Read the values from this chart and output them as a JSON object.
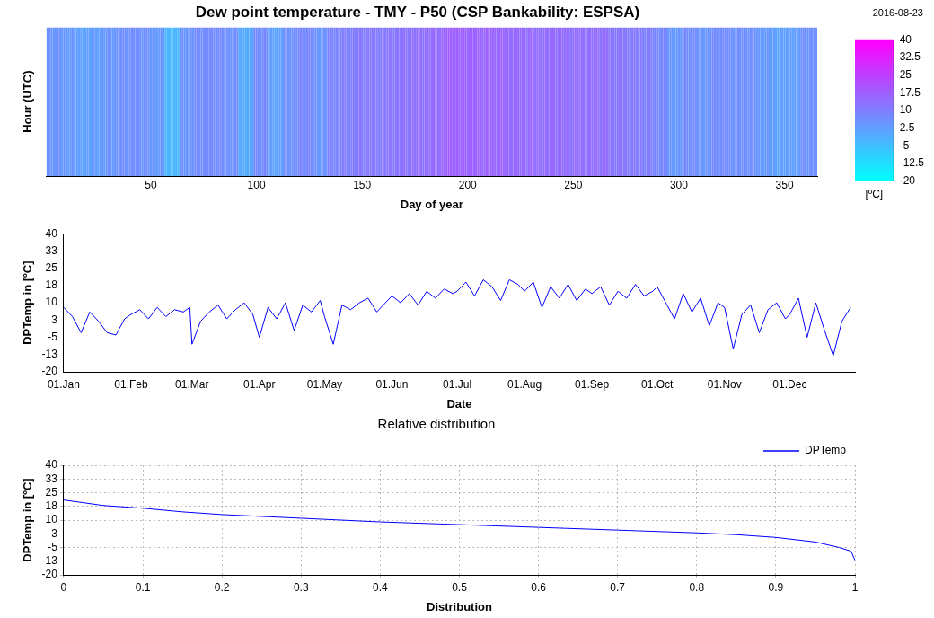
{
  "chart_data": [
    {
      "type": "heatmap",
      "title": "Dew point temperature - TMY - P50 (CSP Bankability: ESPSA)",
      "xlabel": "Day of year",
      "ylabel": "Hour (UTC)",
      "clabel": "[ºC]",
      "annotations": [
        "2016-08-23"
      ],
      "tick_labels": "x",
      "categories": [
        null,
        null,
        null,
        null,
        null,
        null,
        null,
        null,
        null,
        null,
        null,
        null,
        null,
        null,
        null,
        null,
        null,
        null,
        null,
        null,
        null,
        null,
        null,
        null,
        null,
        null,
        null,
        null,
        null,
        null,
        null,
        null,
        null,
        null,
        null,
        null,
        null,
        null,
        null,
        null,
        null,
        null,
        null,
        null,
        null,
        null,
        null,
        null,
        null,
        "50",
        null,
        null,
        null,
        null,
        null,
        null,
        null,
        null,
        null,
        null,
        null,
        null,
        null,
        null,
        null,
        null,
        null,
        null,
        null,
        null,
        null,
        null,
        null,
        null,
        null,
        null,
        null,
        null,
        null,
        null,
        null,
        null,
        null,
        null,
        null,
        null,
        null,
        null,
        null,
        null,
        null,
        null,
        null,
        null,
        null,
        null,
        null,
        null,
        null,
        "100",
        null,
        null,
        null,
        null,
        null,
        null,
        null,
        null,
        null,
        null,
        null,
        null,
        null,
        null,
        null,
        null,
        null,
        null,
        null,
        null,
        null,
        null,
        null,
        null,
        null,
        null,
        null,
        null,
        null,
        null,
        null,
        null,
        null,
        null,
        null,
        null,
        null,
        null,
        null,
        null,
        null,
        null,
        null,
        null,
        null,
        null,
        null,
        null,
        null,
        "150",
        null,
        null,
        null,
        null,
        null,
        null,
        null,
        null,
        null,
        null,
        null,
        null,
        null,
        null,
        null,
        null,
        null,
        null,
        null,
        null,
        null,
        null,
        null,
        null,
        null,
        null,
        null,
        null,
        null,
        null,
        null,
        null,
        null,
        null,
        null,
        null,
        null,
        null,
        null,
        null,
        null,
        null,
        null,
        null,
        null,
        null,
        null,
        null,
        null,
        "200",
        null,
        null,
        null,
        null,
        null,
        null,
        null,
        null,
        null,
        null,
        null,
        null,
        null,
        null,
        null,
        null,
        null,
        null,
        null,
        null,
        null,
        null,
        null,
        null,
        null,
        null,
        null,
        null,
        null,
        null,
        null,
        null,
        null,
        null,
        null,
        null,
        null,
        null,
        null,
        null,
        null,
        null,
        null,
        null,
        null,
        null,
        null,
        null,
        null,
        "250",
        null,
        null,
        null,
        null,
        null,
        null,
        null,
        null,
        null,
        null,
        null,
        null,
        null,
        null,
        null,
        null,
        null,
        null,
        null,
        null,
        null,
        null,
        null,
        null,
        null,
        null,
        null,
        null,
        null,
        null,
        null,
        null,
        null,
        null,
        null,
        null,
        null,
        null,
        null,
        null,
        null,
        null,
        null,
        null,
        null,
        null,
        null,
        null,
        null,
        "300",
        null,
        null,
        null,
        null,
        null,
        null,
        null,
        null,
        null,
        null,
        null,
        null,
        null,
        null,
        null,
        null,
        null,
        null,
        null,
        null,
        null,
        null,
        null,
        null,
        null,
        null,
        null,
        null,
        null,
        null,
        null,
        null,
        null,
        null,
        null,
        null,
        null,
        null,
        null,
        null,
        null,
        null,
        null,
        null,
        null,
        null,
        null,
        null,
        null,
        "350",
        null,
        null,
        null,
        null,
        null,
        null,
        null,
        null,
        null,
        null,
        null,
        null,
        null,
        null,
        null
      ],
      "y_categories": [
        null
      ],
      "cells": [
        [
          5,
          6,
          5,
          4,
          5,
          6,
          5,
          4,
          5,
          4,
          3,
          4,
          5,
          4,
          2,
          3,
          2,
          1,
          2,
          3,
          2,
          3,
          4,
          3,
          2,
          3,
          4,
          3,
          5,
          6,
          5,
          4,
          5,
          6,
          5,
          6,
          7,
          6,
          5,
          6,
          7,
          6,
          6,
          7,
          6,
          5,
          6,
          7,
          6,
          4,
          5,
          4,
          3,
          4,
          5,
          4,
          -3,
          -2,
          -3,
          -4,
          -3,
          -2,
          -3,
          5,
          6,
          5,
          4,
          5,
          6,
          5,
          7,
          8,
          7,
          6,
          7,
          8,
          7,
          7,
          8,
          7,
          6,
          7,
          8,
          7,
          6,
          7,
          6,
          5,
          6,
          7,
          6,
          0,
          1,
          0,
          -1,
          0,
          1,
          0,
          7,
          8,
          7,
          6,
          7,
          8,
          7,
          2,
          3,
          2,
          1,
          2,
          3,
          2,
          6,
          7,
          6,
          5,
          6,
          7,
          6,
          8,
          9,
          8,
          7,
          8,
          9,
          8,
          5,
          6,
          5,
          4,
          5,
          6,
          5,
          9,
          10,
          9,
          8,
          9,
          10,
          9,
          10,
          11,
          10,
          9,
          10,
          11,
          10,
          11,
          12,
          11,
          10,
          11,
          12,
          11,
          11,
          12,
          11,
          10,
          11,
          12,
          11,
          12,
          13,
          12,
          11,
          12,
          13,
          12,
          13,
          14,
          13,
          12,
          13,
          14,
          13,
          14,
          15,
          14,
          13,
          14,
          15,
          14,
          15,
          16,
          15,
          14,
          15,
          16,
          15,
          17,
          18,
          17,
          16,
          17,
          18,
          17,
          17,
          18,
          17,
          16,
          17,
          18,
          17,
          16,
          17,
          16,
          15,
          16,
          17,
          16,
          16,
          17,
          16,
          15,
          16,
          17,
          16,
          15,
          16,
          15,
          14,
          15,
          16,
          15,
          15,
          16,
          15,
          14,
          15,
          16,
          15,
          14,
          15,
          14,
          13,
          14,
          15,
          14,
          15,
          16,
          15,
          14,
          15,
          16,
          15,
          14,
          15,
          14,
          13,
          14,
          15,
          14,
          14,
          15,
          14,
          13,
          14,
          15,
          14,
          14,
          15,
          14,
          13,
          14,
          15,
          14,
          12,
          13,
          12,
          11,
          12,
          13,
          12,
          11,
          12,
          11,
          10,
          11,
          12,
          11,
          10,
          11,
          10,
          9,
          10,
          11,
          10,
          8,
          9,
          8,
          7,
          8,
          9,
          8,
          4,
          5,
          4,
          3,
          4,
          5,
          4,
          7,
          8,
          7,
          6,
          7,
          8,
          7,
          5,
          6,
          5,
          4,
          5,
          6,
          5,
          7,
          8,
          7,
          6,
          7,
          8,
          7,
          6,
          7,
          6,
          5,
          6,
          7,
          6,
          6,
          7,
          6,
          5,
          6,
          7,
          6,
          4,
          5,
          4,
          3,
          4,
          5,
          4,
          2,
          3,
          2,
          1,
          2,
          3,
          2,
          3,
          4,
          3,
          2,
          3,
          4,
          3,
          6,
          7,
          6,
          5,
          6,
          7,
          6,
          6
        ]
      ],
      "clim": [
        -20,
        40
      ],
      "cticks": [
        -20,
        -12.5,
        -5,
        2.5,
        10,
        17.5,
        25,
        32.5,
        40
      ]
    },
    {
      "type": "line",
      "xlabel": "Date",
      "ylabel": "DPTemp in [ºC]",
      "legend": false,
      "grid": false,
      "x": [
        "--01-01",
        "--01-05",
        "--01-09",
        "--01-13",
        "--01-17",
        "--01-21",
        "--01-25",
        "--01-29",
        "--02-01",
        "--02-05",
        "--02-09",
        "--02-13",
        "--02-17",
        "--02-21",
        "--02-25",
        "--02-28",
        "--03-01",
        "--03-05",
        "--03-09",
        "--03-13",
        "--03-17",
        "--03-21",
        "--03-25",
        "--03-29",
        "--04-01",
        "--04-05",
        "--04-09",
        "--04-13",
        "--04-17",
        "--04-21",
        "--04-25",
        "--04-29",
        "--05-01",
        "--05-05",
        "--05-09",
        "--05-13",
        "--05-17",
        "--05-21",
        "--05-25",
        "--05-29",
        "--06-01",
        "--06-05",
        "--06-09",
        "--06-13",
        "--06-17",
        "--06-21",
        "--06-25",
        "--06-29",
        "--07-01",
        "--07-05",
        "--07-09",
        "--07-13",
        "--07-17",
        "--07-21",
        "--07-25",
        "--07-29",
        "--08-01",
        "--08-05",
        "--08-09",
        "--08-13",
        "--08-17",
        "--08-21",
        "--08-25",
        "--08-29",
        "--09-01",
        "--09-05",
        "--09-09",
        "--09-13",
        "--09-17",
        "--09-21",
        "--09-25",
        "--09-29",
        "--10-01",
        "--10-05",
        "--10-09",
        "--10-13",
        "--10-17",
        "--10-21",
        "--10-25",
        "--10-29",
        "--11-01",
        "--11-05",
        "--11-09",
        "--11-13",
        "--11-17",
        "--11-21",
        "--11-25",
        "--11-29",
        "--12-01",
        "--12-05",
        "--12-09",
        "--12-13",
        "--12-17",
        "--12-21",
        "--12-25",
        "--12-29"
      ],
      "series": [
        {
          "color": "#0000ff",
          "values": [
            8,
            4,
            -3,
            6,
            2,
            -3,
            -4,
            3,
            5,
            7,
            3,
            8,
            4,
            7,
            6,
            8,
            -8,
            2,
            6,
            9,
            3,
            7,
            10,
            5,
            -5,
            8,
            3,
            10,
            -2,
            9,
            6,
            11,
            4,
            -8,
            9,
            7,
            10,
            12,
            6,
            10,
            13,
            10,
            14,
            9,
            15,
            12,
            16,
            14,
            15,
            19,
            13,
            20,
            17,
            11,
            20,
            18,
            15,
            19,
            8,
            17,
            12,
            18,
            11,
            16,
            14,
            17,
            9,
            15,
            12,
            18,
            13,
            15,
            17,
            10,
            3,
            14,
            6,
            12,
            0,
            10,
            8,
            -10,
            5,
            9,
            -3,
            7,
            10,
            3,
            5,
            12,
            -5,
            10,
            -2,
            -13,
            2,
            8
          ]
        }
      ],
      "xlim": [
        "--01-01",
        "--12-31"
      ],
      "xticks": [
        {
          "value": "--01-01",
          "label": "01.Jan"
        },
        {
          "value": "--02-01",
          "label": "01.Feb"
        },
        {
          "value": "--03-01",
          "label": "01.Mar"
        },
        {
          "value": "--04-01",
          "label": "01.Apr"
        },
        {
          "value": "--05-01",
          "label": "01.May"
        },
        {
          "value": "--06-01",
          "label": "01.Jun"
        },
        {
          "value": "--07-01",
          "label": "01.Jul"
        },
        {
          "value": "--08-01",
          "label": "01.Aug"
        },
        {
          "value": "--09-01",
          "label": "01.Sep"
        },
        {
          "value": "--10-01",
          "label": "01.Oct"
        },
        {
          "value": "--11-01",
          "label": "01.Nov"
        },
        {
          "value": "--12-01",
          "label": "01.Dec"
        }
      ],
      "ylim": [
        -20,
        40
      ],
      "yticks": [
        -20,
        {
          "value": -12.5,
          "label": "-13"
        },
        -5,
        {
          "value": 2.5,
          "label": "3"
        },
        10,
        {
          "value": 17.5,
          "label": "18"
        },
        25,
        {
          "value": 32.5,
          "label": "33"
        },
        40
      ]
    },
    {
      "type": "line",
      "title": "Relative distribution",
      "xlabel": "Distribution",
      "ylabel": "DPTemp in [ºC]",
      "legend": "top right",
      "grid": true,
      "line_style": "solid",
      "series": [
        {
          "name": "DPTemp",
          "color": "#0000ff",
          "x": [
            0,
            0.05,
            0.1,
            0.15,
            0.2,
            0.3,
            0.4,
            0.5,
            0.6,
            0.7,
            0.8,
            0.85,
            0.9,
            0.95,
            0.98,
            0.995,
            1
          ],
          "values": [
            21,
            18,
            16.5,
            14.5,
            13,
            11,
            9,
            7.5,
            6,
            4.5,
            3,
            2,
            0.5,
            -2,
            -5,
            -7,
            -12
          ]
        }
      ],
      "xlim": [
        0,
        1
      ],
      "xticks": [
        0,
        0.1,
        0.2,
        0.3,
        0.4,
        0.5,
        0.6,
        0.7,
        0.8,
        0.9,
        1
      ],
      "ylim": [
        -20,
        40
      ],
      "yticks": [
        -20,
        {
          "value": -12.5,
          "label": "-13"
        },
        -5,
        {
          "value": 2.5,
          "label": "3"
        },
        10,
        {
          "value": 17.5,
          "label": "18"
        },
        25,
        {
          "value": 32.5,
          "label": "33"
        },
        40
      ]
    }
  ]
}
